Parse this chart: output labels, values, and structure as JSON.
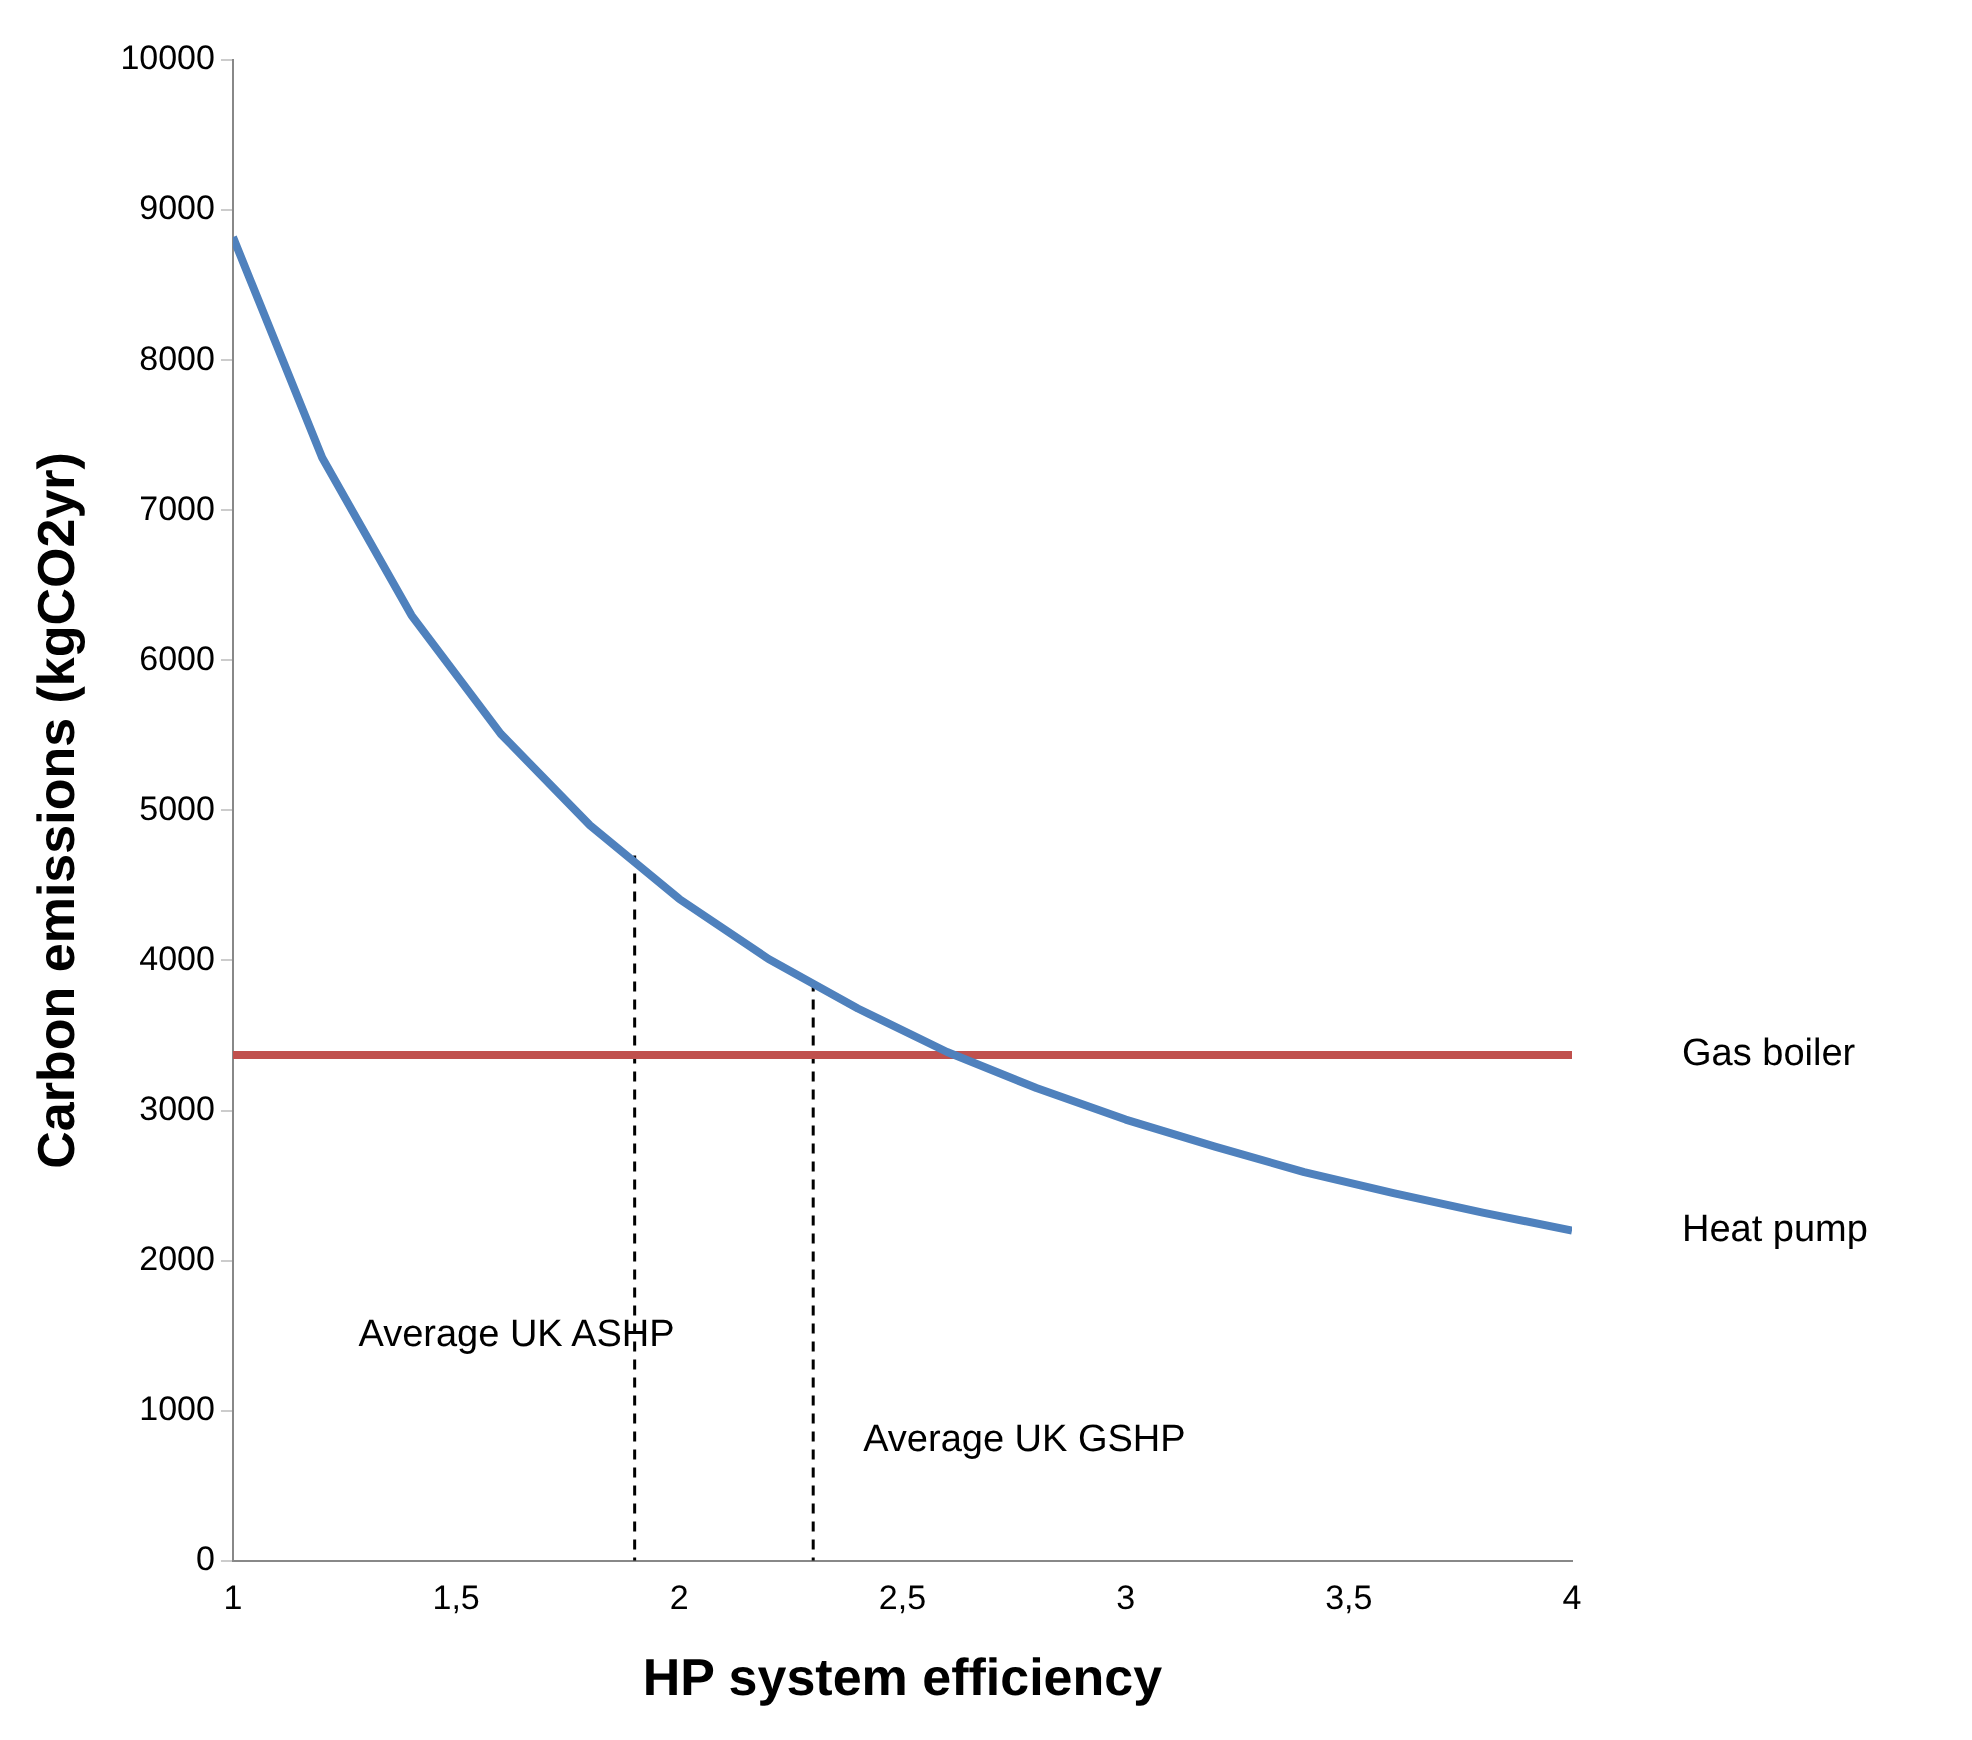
{
  "chart_data": {
    "type": "line",
    "xlabel": "HP system efficiency",
    "ylabel": "Carbon emissions (kgCO2yr)",
    "xlim": [
      1,
      4
    ],
    "xticks": [
      1,
      {
        "value": 1.5,
        "label": "1,5"
      },
      2,
      {
        "value": 2.5,
        "label": "2,5"
      },
      3,
      {
        "value": 3.5,
        "label": "3,5"
      },
      4
    ],
    "ylim": [
      0,
      10000
    ],
    "yticks": [
      0,
      1000,
      2000,
      3000,
      4000,
      5000,
      6000,
      7000,
      8000,
      9000,
      10000
    ],
    "grid": false,
    "legend": false,
    "marker": "none",
    "series": [
      {
        "name": "Heat pump",
        "color": "#4f81bd",
        "x": [
          1,
          1.2,
          1.4,
          1.6,
          1.8,
          2,
          2.2,
          2.4,
          2.6,
          2.8,
          3,
          3.2,
          3.4,
          3.6,
          3.8,
          4
        ],
        "values": [
          8820,
          7350,
          6300,
          5510,
          4900,
          4410,
          4010,
          3680,
          3390,
          3150,
          2940,
          2760,
          2590,
          2450,
          2320,
          2200
        ]
      },
      {
        "name": "Gas boiler",
        "color": "#c0504d",
        "x": [
          1,
          4
        ],
        "values": [
          3370,
          3370
        ]
      },
      {
        "color": "#000000",
        "line_style": "dashed",
        "x": [
          1.9,
          1.9
        ],
        "values": [
          4700,
          0
        ]
      },
      {
        "color": "#000000",
        "line_style": "dashed",
        "x": [
          2.3,
          2.3
        ],
        "values": [
          3860,
          0
        ]
      }
    ],
    "annotations": [
      "Average UK ASHP",
      "Average UK GSHP"
    ]
  }
}
